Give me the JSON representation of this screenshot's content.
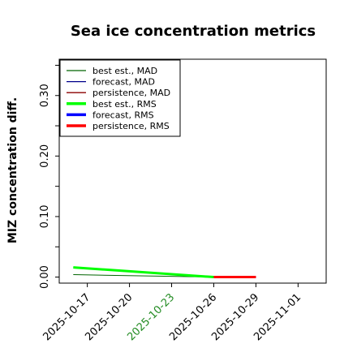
{
  "chart_data": {
    "type": "line",
    "title": "Sea ice concentration metrics",
    "xlabel": "",
    "ylabel": "MIZ concentration diff.",
    "xlim": [
      "2025-10-15",
      "2025-11-03"
    ],
    "ylim": [
      -0.01,
      0.36
    ],
    "yticks": [
      0.0,
      0.05,
      0.1,
      0.15,
      0.2,
      0.25,
      0.3,
      0.35
    ],
    "ytick_labels": [
      "0.00",
      "",
      "0.10",
      "",
      "0.20",
      "",
      "0.30",
      ""
    ],
    "xticks": [
      "2025-10-17",
      "2025-10-20",
      "2025-10-23",
      "2025-10-26",
      "2025-10-29",
      "2025-11-01"
    ],
    "xtick_labels": [
      "2025-10-17",
      "2025-10-20",
      "2025-10-23",
      "2025-10-26",
      "2025-10-29",
      "2025-11-01"
    ],
    "highlighted_xtick": "2025-10-23",
    "highlight_color": "#228b22",
    "grid": false,
    "legend_position": "top-left",
    "series": [
      {
        "name": "best est., MAD",
        "color": "#006400",
        "width": "thin",
        "points": [
          [
            "2025-10-16",
            0.004
          ],
          [
            "2025-10-26",
            0.0
          ]
        ]
      },
      {
        "name": "forecast,  MAD",
        "color": "#00008b",
        "width": "thin",
        "points": [
          [
            "2025-10-26",
            0.0
          ],
          [
            "2025-10-29",
            0.0
          ]
        ]
      },
      {
        "name": "persistence, MAD",
        "color": "#8b0000",
        "width": "thin",
        "points": [
          [
            "2025-10-26",
            0.0
          ],
          [
            "2025-10-29",
            0.0
          ]
        ]
      },
      {
        "name": "best est., RMS",
        "color": "#00ff00",
        "width": "thick",
        "points": [
          [
            "2025-10-16",
            0.016
          ],
          [
            "2025-10-26",
            0.0
          ]
        ]
      },
      {
        "name": "forecast,  RMS",
        "color": "#0000ff",
        "width": "thick",
        "points": [
          [
            "2025-10-26",
            0.0
          ],
          [
            "2025-10-29",
            0.0
          ]
        ]
      },
      {
        "name": "persistence, RMS",
        "color": "#ff0000",
        "width": "thick",
        "points": [
          [
            "2025-10-26",
            0.0
          ],
          [
            "2025-10-29",
            0.0
          ]
        ]
      }
    ]
  }
}
